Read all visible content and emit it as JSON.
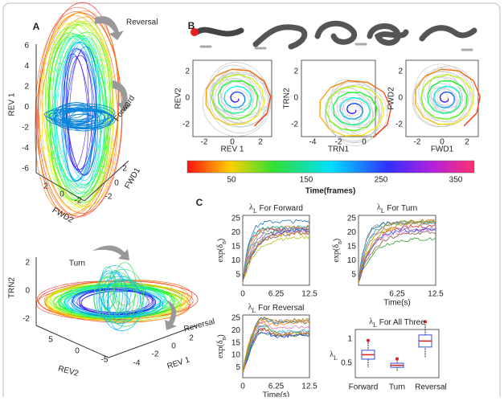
{
  "panel_a": {
    "label": "A",
    "top": {
      "annotations": [
        "Reversal",
        "Forward"
      ],
      "z_label": "REV 1",
      "z_ticks": [
        "6",
        "4",
        "2",
        "0",
        "-2",
        "-4",
        "-6"
      ],
      "x_label": "FWD2",
      "x_ticks": [
        "2",
        "0",
        "-2"
      ],
      "y_label": "FWD1",
      "y_ticks": [
        "-2",
        "0",
        "2"
      ]
    },
    "bottom": {
      "annotations": [
        "Turn",
        "Reversal"
      ],
      "z_label": "TRN2",
      "z_ticks": [
        "2",
        "0",
        "-2"
      ],
      "x_label": "REV2",
      "x_ticks": [
        "5",
        "0",
        "-5"
      ],
      "y_label": "REV 1",
      "y_ticks": [
        "-4",
        "-2",
        "0",
        "2"
      ]
    }
  },
  "panel_b": {
    "label": "B",
    "plots": [
      {
        "y_label": "REV2",
        "x_label": "REV 1",
        "y_ticks": [
          "2",
          "0",
          "-2"
        ],
        "x_ticks": [
          "-2",
          "0",
          "2"
        ]
      },
      {
        "y_label": "TRN2",
        "x_label": "TRN1",
        "y_ticks": [
          "2",
          "0",
          "-2"
        ],
        "x_ticks": [
          "-4",
          "-2",
          "0"
        ]
      },
      {
        "y_label": "FWD2",
        "x_label": "FWD1",
        "y_ticks": [
          "2",
          "0",
          "-2"
        ],
        "x_ticks": [
          "-2",
          "0",
          "2"
        ]
      }
    ],
    "colorbar": {
      "ticks": [
        "50",
        "150",
        "250",
        "350"
      ],
      "label": "Time(frames)"
    }
  },
  "panel_c": {
    "label": "C",
    "plots": [
      {
        "title": {
          "symbol": "λ",
          "subscript": "L",
          "text": " For Forward"
        },
        "y_label": {
          "symbol": "exp(δ",
          "subscript": "n",
          "text": ")"
        },
        "y_ticks": [
          "25",
          "20",
          "15",
          "10",
          "5"
        ],
        "x_ticks": [
          "0",
          "6.25",
          "12.5"
        ]
      },
      {
        "title": {
          "symbol": "λ",
          "subscript": "L",
          "text": " For Turn"
        },
        "y_label": {
          "symbol": "exp(δ",
          "subscript": "n",
          "text": ")"
        },
        "y_ticks": [
          "25",
          "20",
          "15",
          "10",
          "5"
        ],
        "x_ticks": [
          "6.25",
          "12.5"
        ],
        "x_label": "Time(s)"
      },
      {
        "title": {
          "symbol": "λ",
          "subscript": "L",
          "text": " For Reversal"
        },
        "y_label": {
          "symbol": "exp(δ",
          "subscript": "n",
          "text": ")"
        },
        "y_ticks": [
          "25",
          "20",
          "15",
          "10",
          "5"
        ],
        "x_ticks": [
          "0",
          "6.25",
          "12.5"
        ],
        "x_label": "Time(s)"
      },
      {
        "title": {
          "symbol": "λ",
          "subscript": "L",
          "text": " For All Three"
        },
        "y_label": {
          "symbol": "λ",
          "subscript": "L",
          "text": ""
        },
        "y_ticks": [
          "1",
          "0.5"
        ],
        "x_ticks": [
          "Forward",
          "Turn",
          "Reversal"
        ]
      }
    ]
  }
}
